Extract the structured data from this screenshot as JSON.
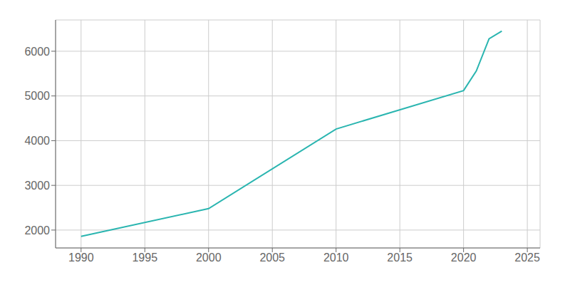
{
  "chart_data": {
    "type": "line",
    "x": [
      1990,
      2000,
      2010,
      2020,
      2021,
      2022,
      2023
    ],
    "values": [
      1860,
      2480,
      4260,
      5120,
      5560,
      6280,
      6450
    ],
    "color": "#2ab5b0",
    "xlim": [
      1988,
      2026
    ],
    "ylim": [
      1600,
      6700
    ],
    "xticks": [
      1990,
      1995,
      2000,
      2005,
      2010,
      2015,
      2020,
      2025
    ],
    "yticks": [
      2000,
      3000,
      4000,
      5000,
      6000
    ],
    "grid": true
  }
}
